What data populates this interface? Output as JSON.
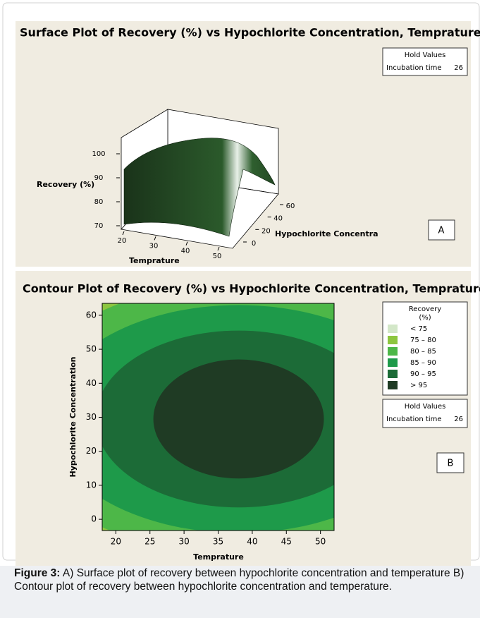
{
  "chart_data": [
    {
      "type": "surface",
      "title": "Surface Plot of Recovery (%) vs Hypochlorite Concentration, Temprature",
      "x_label": "Temprature",
      "y_label": "Hypochlorite Concentra",
      "z_label": "Recovery (%)",
      "xlim": [
        20,
        50
      ],
      "xticks": [
        20,
        30,
        40,
        50
      ],
      "ylim": [
        0,
        60
      ],
      "yticks": [
        0,
        20,
        40,
        60
      ],
      "zlim": [
        70,
        100
      ],
      "zticks": [
        70,
        80,
        90,
        100
      ],
      "color": "#1f3d1f",
      "hold_title": "Hold Values",
      "hold_name": "Incubation time",
      "hold_value": 26,
      "panel": "A"
    },
    {
      "type": "contour",
      "title": "Contour Plot of Recovery (%) vs Hypochlorite Concentration, Temprature",
      "x_label": "Temprature",
      "y_label": "Hypochlorite Concentration",
      "xlim": [
        18,
        52
      ],
      "xticks": [
        20,
        25,
        30,
        35,
        40,
        45,
        50
      ],
      "ylim": [
        -3.3,
        63.5
      ],
      "yticks": [
        0,
        10,
        20,
        30,
        40,
        50,
        60
      ],
      "legend_title": [
        "Recovery",
        "(%)"
      ],
      "levels": [
        {
          "label": "<  75",
          "color": "#d3e7c8"
        },
        {
          "label": "75  –  80",
          "color": "#8dc63f"
        },
        {
          "label": "80  –  85",
          "color": "#4db748"
        },
        {
          "label": "85  –  90",
          "color": "#1e9a4a"
        },
        {
          "label": "90  –  95",
          "color": "#1c6b37"
        },
        {
          "label": ">  95",
          "color": "#1f3b24"
        }
      ],
      "hold_title": "Hold Values",
      "hold_name": "Incubation time",
      "hold_value": 26,
      "panel": "B"
    }
  ],
  "caption": {
    "label": "Figure 3:",
    "text": " A) Surface plot of recovery between hypochlorite concentration and temperature B) Contour plot of recovery between hypochlorite concentration and temperature."
  }
}
